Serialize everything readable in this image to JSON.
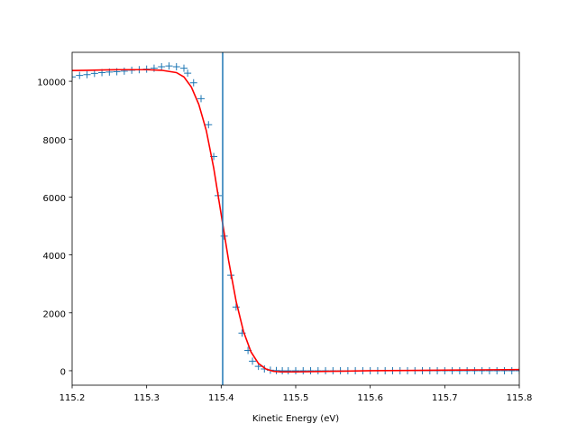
{
  "chart_data": {
    "type": "scatter",
    "title": "",
    "xlabel": "Kinetic Energy (eV)",
    "ylabel": "",
    "xlim": [
      115.2,
      115.8
    ],
    "ylim": [
      -500,
      11000
    ],
    "xticks": [
      {
        "value": 115.2,
        "label": "115.2"
      },
      {
        "value": 115.3,
        "label": "115.3"
      },
      {
        "value": 115.4,
        "label": "115.4"
      },
      {
        "value": 115.5,
        "label": "115.5"
      },
      {
        "value": 115.6,
        "label": "115.6"
      },
      {
        "value": 115.7,
        "label": "115.7"
      },
      {
        "value": 115.8,
        "label": "115.8"
      }
    ],
    "yticks": [
      {
        "value": 0,
        "label": "0"
      },
      {
        "value": 2000,
        "label": "2000"
      },
      {
        "value": 4000,
        "label": "4000"
      },
      {
        "value": 6000,
        "label": "6000"
      },
      {
        "value": 8000,
        "label": "8000"
      },
      {
        "value": 10000,
        "label": "10000"
      }
    ],
    "grid": false,
    "legend": "none",
    "series": [
      {
        "kind": "markers",
        "marker": "plus",
        "color": "#1f77b4",
        "x": [
          115.2,
          115.21,
          115.22,
          115.23,
          115.24,
          115.25,
          115.26,
          115.27,
          115.28,
          115.29,
          115.3,
          115.31,
          115.32,
          115.33,
          115.34,
          115.35,
          115.355,
          115.363,
          115.373,
          115.383,
          115.39,
          115.396,
          115.404,
          115.413,
          115.42,
          115.428,
          115.436,
          115.442,
          115.45,
          115.458,
          115.466,
          115.474,
          115.482,
          115.49,
          115.5,
          115.51,
          115.52,
          115.53,
          115.54,
          115.55,
          115.56,
          115.57,
          115.58,
          115.59,
          115.6,
          115.61,
          115.62,
          115.63,
          115.64,
          115.65,
          115.66,
          115.67,
          115.68,
          115.69,
          115.7,
          115.71,
          115.72,
          115.73,
          115.74,
          115.75,
          115.76,
          115.77,
          115.78,
          115.79,
          115.8
        ],
        "y": [
          10150,
          10200,
          10230,
          10270,
          10300,
          10320,
          10330,
          10350,
          10380,
          10400,
          10420,
          10450,
          10500,
          10530,
          10500,
          10450,
          10280,
          9950,
          9400,
          8500,
          7400,
          6050,
          4650,
          3300,
          2200,
          1300,
          700,
          330,
          150,
          60,
          20,
          5,
          0,
          0,
          0,
          0,
          0,
          0,
          0,
          0,
          0,
          0,
          0,
          0,
          0,
          0,
          0,
          0,
          0,
          0,
          0,
          0,
          0,
          0,
          0,
          0,
          0,
          0,
          0,
          0,
          0,
          0,
          0,
          0,
          0
        ]
      },
      {
        "kind": "line",
        "color": "#ff0000",
        "x": [
          115.2,
          115.22,
          115.24,
          115.26,
          115.28,
          115.3,
          115.32,
          115.34,
          115.35,
          115.36,
          115.37,
          115.38,
          115.39,
          115.4,
          115.41,
          115.42,
          115.43,
          115.44,
          115.45,
          115.46,
          115.47,
          115.48,
          115.5,
          115.55,
          115.6,
          115.65,
          115.7,
          115.75,
          115.8
        ],
        "y": [
          10370,
          10380,
          10390,
          10400,
          10400,
          10400,
          10380,
          10300,
          10150,
          9800,
          9200,
          8300,
          7000,
          5400,
          3800,
          2400,
          1350,
          650,
          250,
          60,
          -20,
          -40,
          -40,
          -20,
          0,
          10,
          20,
          30,
          40
        ]
      }
    ],
    "vline": {
      "x": 115.402,
      "color": "#1f77b4"
    }
  }
}
